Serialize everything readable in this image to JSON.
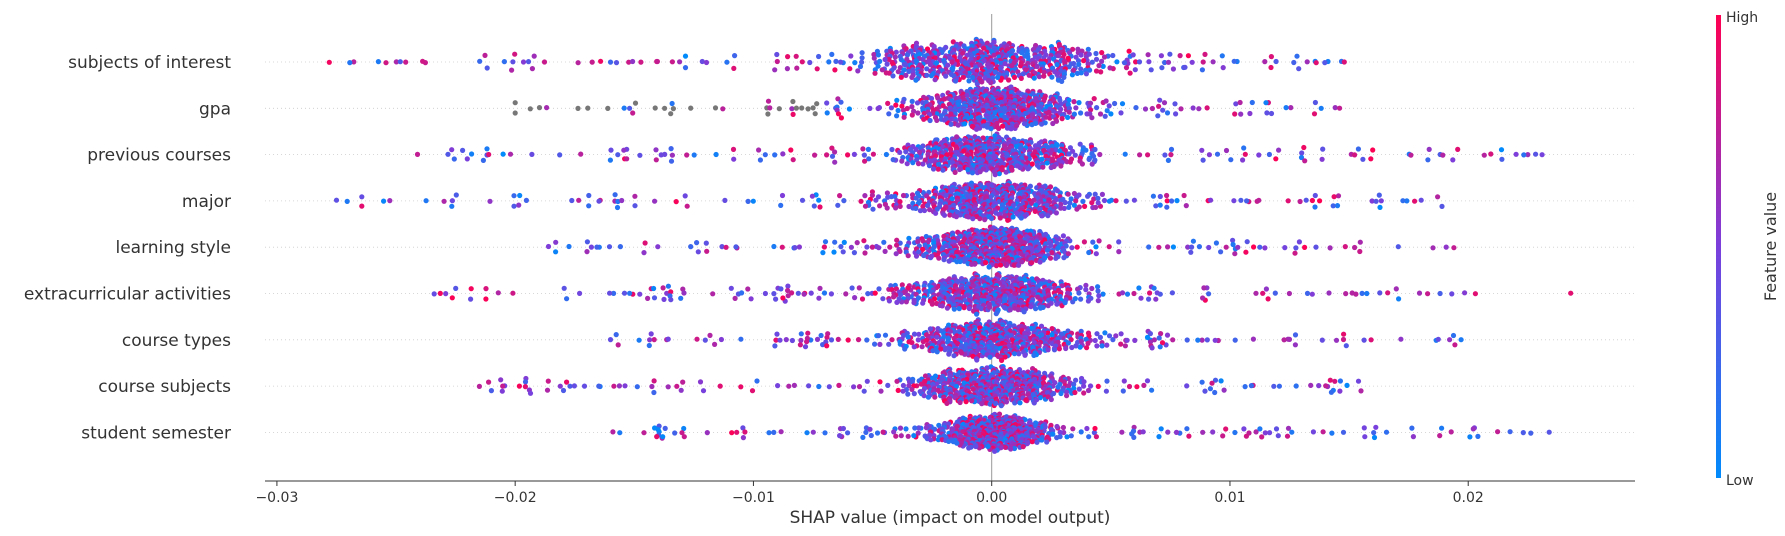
{
  "chart_data": {
    "type": "scatter",
    "subtype": "shap-beeswarm",
    "title": "",
    "xlabel": "SHAP value (impact on model output)",
    "xlim": [
      -0.0305,
      0.027
    ],
    "xticks": [
      -0.03,
      -0.02,
      -0.01,
      0.0,
      0.01,
      0.02
    ],
    "xtick_labels": [
      "−0.03",
      "−0.02",
      "−0.01",
      "0.00",
      "0.01",
      "0.02"
    ],
    "zero_line": true,
    "row_gridlines": true,
    "features": [
      {
        "name": "subjects of interest",
        "min": -0.0278,
        "max": 0.0148,
        "core_spread": 0.0045,
        "max_halfheight": 0.48
      },
      {
        "name": "gpa",
        "min": -0.02,
        "max": 0.0146,
        "core_spread": 0.0028,
        "max_halfheight": 0.45
      },
      {
        "name": "previous courses",
        "min": -0.0241,
        "max": 0.0231,
        "core_spread": 0.0032,
        "max_halfheight": 0.43
      },
      {
        "name": "major",
        "min": -0.0275,
        "max": 0.0189,
        "core_spread": 0.0033,
        "max_halfheight": 0.43
      },
      {
        "name": "learning style",
        "min": -0.0186,
        "max": 0.0194,
        "core_spread": 0.0027,
        "max_halfheight": 0.43
      },
      {
        "name": "extracurricular activities",
        "min": -0.0234,
        "max": 0.0243,
        "core_spread": 0.0034,
        "max_halfheight": 0.43
      },
      {
        "name": "course types",
        "min": -0.016,
        "max": 0.0197,
        "core_spread": 0.0029,
        "max_halfheight": 0.43
      },
      {
        "name": "course subjects",
        "min": -0.0215,
        "max": 0.0155,
        "core_spread": 0.0029,
        "max_halfheight": 0.43
      },
      {
        "name": "student semester",
        "min": -0.0159,
        "max": 0.0234,
        "core_spread": 0.0022,
        "max_halfheight": 0.4
      }
    ],
    "colorbar": {
      "title": "Feature value",
      "high_label": "High",
      "low_label": "Low",
      "colors": [
        "#008bfb",
        "#7b3fdc",
        "#ff0052"
      ]
    },
    "missing_value_color": "#777777"
  }
}
